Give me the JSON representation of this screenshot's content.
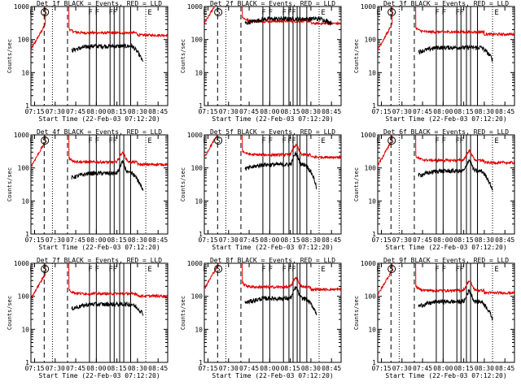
{
  "chart_data": {
    "type": "line",
    "scale": "log",
    "ylim": [
      1,
      1000
    ],
    "yticks": [
      1,
      10,
      100,
      1000
    ],
    "ytick_labels": [
      "1",
      "10",
      "100",
      "1000"
    ],
    "xlim": [
      "07:12:20",
      "08:52:00"
    ],
    "xticks": [
      "07:15",
      "07:30",
      "07:45",
      "08:00",
      "08:15",
      "08:30",
      "08:45"
    ],
    "ylabel": "Counts/sec",
    "xlabel": "Start Time (22-Feb-03 07:12:20)",
    "markers": {
      "dashed": [
        "07:22",
        "07:39"
      ],
      "dotted": [
        "07:28",
        "08:36"
      ],
      "solid_sets": {
        "full": [
          "07:55",
          "08:00",
          "08:10",
          "08:14",
          "08:17",
          "08:20",
          "08:22",
          "08:27"
        ],
        "partial": [
          "07:55",
          "08:00",
          "08:10",
          "08:13",
          "08:17",
          "08:20",
          "08:25"
        ]
      },
      "letters_full": [
        "E",
        "S",
        "F",
        "F",
        "F",
        "F",
        "F",
        "E"
      ],
      "letters_partial": [
        "E",
        "S",
        "F",
        "F",
        "F",
        "F",
        "E"
      ]
    },
    "panels": [
      {
        "title": "Det 1f BLACK = Events, RED = LLD",
        "markers": "partial",
        "red_level": 160,
        "red_pre": 50,
        "black_level": 55,
        "black_end": 20,
        "black_from": "07:42",
        "black_to": "08:34",
        "spike": false
      },
      {
        "title": "Det 2f BLACK = Events, RED = LLD",
        "markers": "full",
        "red_level": 360,
        "red_pre": 300,
        "black_level": 370,
        "black_end": 320,
        "black_from": "07:42",
        "black_to": "08:45",
        "spike": false
      },
      {
        "title": "Det 3f BLACK = Events, RED = LLD",
        "markers": "partial",
        "red_level": 170,
        "red_pre": 50,
        "black_level": 50,
        "black_end": 25,
        "black_from": "07:42",
        "black_to": "08:36",
        "spike": false
      },
      {
        "title": "Det 4f BLACK = Events, RED = LLD",
        "markers": "partial",
        "red_level": 150,
        "red_pre": 110,
        "black_level": 60,
        "black_end": 20,
        "black_from": "07:42",
        "black_to": "08:34",
        "spike": true
      },
      {
        "title": "Det 5f BLACK = Events, RED = LLD",
        "markers": "full",
        "red_level": 250,
        "red_pre": 210,
        "black_level": 110,
        "black_end": 25,
        "black_from": "07:42",
        "black_to": "08:34",
        "spike": true
      },
      {
        "title": "Det 6f BLACK = Events, RED = LLD",
        "markers": "partial",
        "red_level": 170,
        "red_pre": 120,
        "black_level": 70,
        "black_end": 20,
        "black_from": "07:42",
        "black_to": "08:36",
        "spike": true
      },
      {
        "title": "Det 7f BLACK = Events, RED = LLD",
        "markers": "partial",
        "red_level": 120,
        "red_pre": 85,
        "black_level": 50,
        "black_end": 30,
        "black_from": "07:42",
        "black_to": "08:34",
        "spike": false
      },
      {
        "title": "Det 8f BLACK = Events, RED = LLD",
        "markers": "full",
        "red_level": 190,
        "red_pre": 170,
        "black_level": 75,
        "black_end": 30,
        "black_from": "07:42",
        "black_to": "08:34",
        "spike": true
      },
      {
        "title": "Det 9f BLACK = Events, RED = LLD",
        "markers": "partial",
        "red_level": 150,
        "red_pre": 110,
        "black_level": 60,
        "black_end": 20,
        "black_from": "07:42",
        "black_to": "08:36",
        "spike": true
      }
    ]
  }
}
